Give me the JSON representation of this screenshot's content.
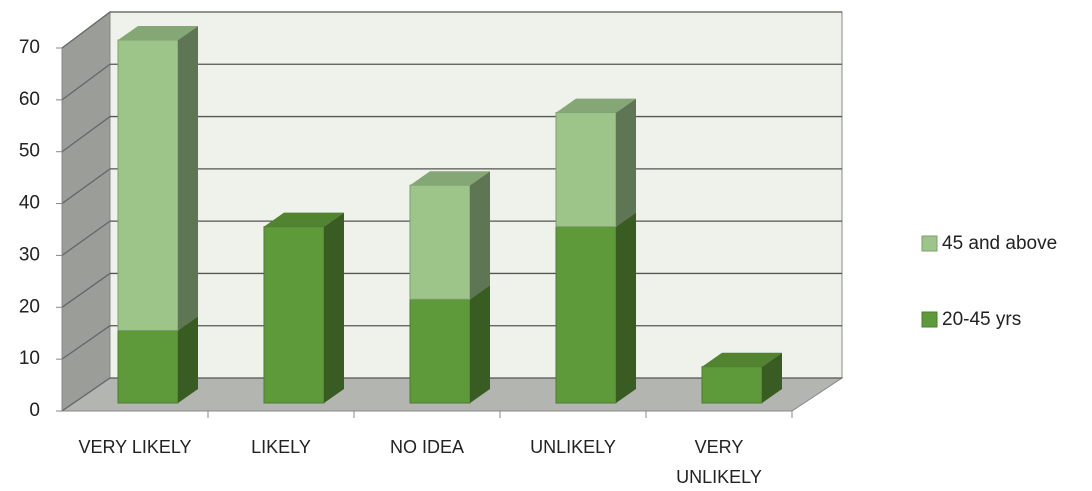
{
  "chart_data": {
    "type": "bar3d_stacked",
    "categories": [
      "VERY LIKELY",
      "LIKELY",
      "NO IDEA",
      "UNLIKELY",
      "VERY UNLIKELY"
    ],
    "series": [
      {
        "name": "20-45 yrs",
        "color": "#5f9a3a",
        "values": [
          14,
          34,
          20,
          34,
          7
        ]
      },
      {
        "name": "45 and above",
        "color": "#9dc58a",
        "values": [
          56,
          0,
          22,
          22,
          0
        ]
      }
    ],
    "ylim": [
      0,
      70
    ],
    "yticks": [
      0,
      10,
      20,
      30,
      40,
      50,
      60,
      70
    ],
    "grid": true
  }
}
